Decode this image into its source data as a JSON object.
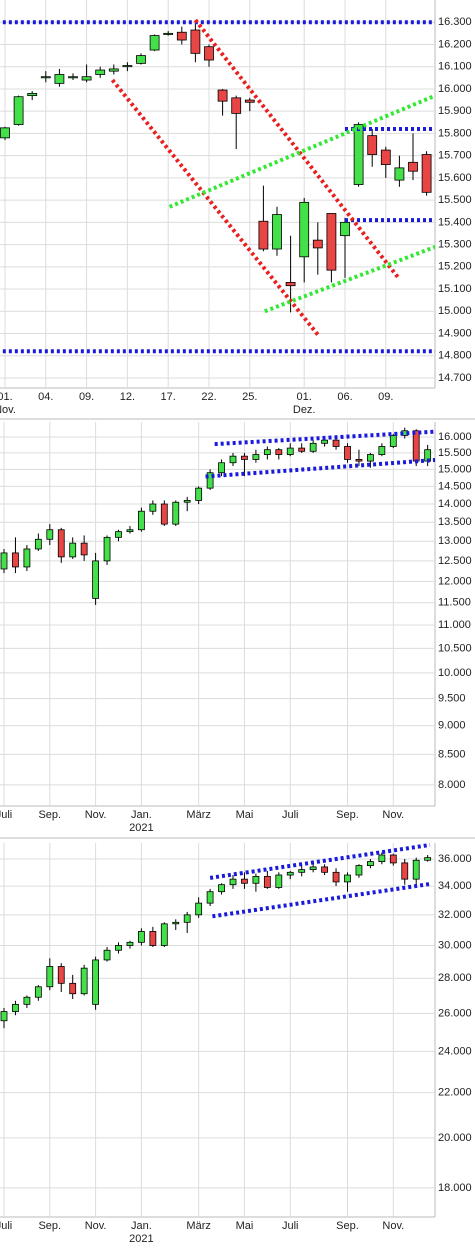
{
  "chart_data": [
    {
      "type": "candlestick",
      "categories": [
        "01.",
        null,
        null,
        "04.",
        null,
        null,
        "09.",
        null,
        null,
        "12.",
        null,
        null,
        "17.",
        null,
        null,
        "22.",
        null,
        null,
        "25.",
        null,
        null,
        null,
        "01.",
        null,
        null,
        "06.",
        null,
        null,
        "09.",
        null,
        null,
        null
      ],
      "sublabels": [
        "Nov.",
        null,
        null,
        null,
        null,
        null,
        null,
        null,
        null,
        null,
        null,
        null,
        null,
        null,
        null,
        null,
        null,
        null,
        null,
        null,
        null,
        null,
        "Dez.",
        null,
        null,
        null,
        null,
        null,
        null,
        null,
        null,
        null
      ],
      "ohlc": [
        [
          15780,
          15830,
          15770,
          15825
        ],
        [
          15840,
          15970,
          15835,
          15965
        ],
        [
          15970,
          15990,
          15950,
          15980
        ],
        [
          16050,
          16080,
          16030,
          16055
        ],
        [
          16025,
          16090,
          16010,
          16065
        ],
        [
          16050,
          16070,
          16040,
          16055
        ],
        [
          16040,
          16110,
          16030,
          16055
        ],
        [
          16065,
          16100,
          16050,
          16085
        ],
        [
          16080,
          16110,
          16065,
          16090
        ],
        [
          16100,
          16120,
          16080,
          16105
        ],
        [
          16115,
          16160,
          16110,
          16150
        ],
        [
          16175,
          16245,
          16170,
          16240
        ],
        [
          16245,
          16260,
          16240,
          16250
        ],
        [
          16255,
          16280,
          16200,
          16220
        ],
        [
          16265,
          16300,
          16120,
          16160
        ],
        [
          16190,
          16200,
          16100,
          16130
        ],
        [
          15995,
          16000,
          15880,
          15945
        ],
        [
          15960,
          15970,
          15730,
          15890
        ],
        [
          15950,
          15960,
          15900,
          15940
        ],
        [
          15405,
          15565,
          15270,
          15280
        ],
        [
          15280,
          15470,
          15250,
          15435
        ],
        [
          15130,
          15340,
          14995,
          15115
        ],
        [
          15245,
          15510,
          15130,
          15490
        ],
        [
          15320,
          15400,
          15165,
          15285
        ],
        [
          15440,
          15440,
          15130,
          15185
        ],
        [
          15340,
          15420,
          15150,
          15400
        ],
        [
          15570,
          15850,
          15560,
          15840
        ],
        [
          15790,
          15820,
          15650,
          15705
        ],
        [
          15725,
          15740,
          15600,
          15660
        ],
        [
          15590,
          15700,
          15560,
          15645
        ],
        [
          15670,
          15800,
          15590,
          15630
        ],
        [
          15705,
          15720,
          15520,
          15535
        ]
      ],
      "ylim": [
        14655,
        16400
      ],
      "log": false,
      "grid": true,
      "yticks": [
        {
          "value": 14700,
          "label": "14.700"
        },
        {
          "value": 14800,
          "label": "14.800"
        },
        {
          "value": 14900,
          "label": "14.900"
        },
        {
          "value": 15000,
          "label": "15.000"
        },
        {
          "value": 15100,
          "label": "15.100"
        },
        {
          "value": 15200,
          "label": "15.200"
        },
        {
          "value": 15300,
          "label": "15.300"
        },
        {
          "value": 15400,
          "label": "15.400"
        },
        {
          "value": 15500,
          "label": "15.500"
        },
        {
          "value": 15600,
          "label": "15.600"
        },
        {
          "value": 15700,
          "label": "15.700"
        },
        {
          "value": 15800,
          "label": "15.800"
        },
        {
          "value": 15900,
          "label": "15.900"
        },
        {
          "value": 16000,
          "label": "16.000"
        },
        {
          "value": 16100,
          "label": "16.100"
        },
        {
          "value": 16200,
          "label": "16.200"
        },
        {
          "value": 16300,
          "label": "16.300"
        }
      ],
      "up_color": "#44e04a",
      "down_color": "#e84545",
      "lines": [
        {
          "color": "#1a1adc",
          "from": [
            -0.6,
            16300
          ],
          "to": [
            31.9,
            16300
          ]
        },
        {
          "color": "#1a1adc",
          "from": [
            -0.6,
            14820
          ],
          "to": [
            31.9,
            14820
          ]
        },
        {
          "color": "#1a1adc",
          "from": [
            25,
            15820
          ],
          "to": [
            31.9,
            15820
          ]
        },
        {
          "color": "#1a1adc",
          "from": [
            25,
            15410
          ],
          "to": [
            31.9,
            15410
          ]
        },
        {
          "color": "#e82020",
          "from": [
            14,
            16310
          ],
          "to": [
            29,
            15145
          ]
        },
        {
          "color": "#e82020",
          "from": [
            7.9,
            16040
          ],
          "to": [
            23,
            14895
          ]
        },
        {
          "color": "#33e833",
          "from": [
            12.1,
            15470
          ],
          "to": [
            33.6,
            16020
          ]
        },
        {
          "color": "#33e833",
          "from": [
            19.1,
            15000
          ],
          "to": [
            33.6,
            15335
          ]
        }
      ]
    },
    {
      "type": "candlestick",
      "categories": [
        "Juli",
        null,
        null,
        null,
        "Sep.",
        null,
        null,
        null,
        "Nov.",
        null,
        null,
        null,
        "Jan.",
        null,
        null,
        null,
        null,
        "März",
        null,
        null,
        null,
        "Mai",
        null,
        null,
        null,
        "Juli",
        null,
        null,
        null,
        null,
        "Sep.",
        null,
        null,
        null,
        "Nov.",
        null,
        null,
        null
      ],
      "sublabels": [
        null,
        null,
        null,
        null,
        null,
        null,
        null,
        null,
        null,
        null,
        null,
        null,
        "2021",
        null,
        null,
        null,
        null,
        null,
        null,
        null,
        null,
        null,
        null,
        null,
        null,
        null,
        null,
        null,
        null,
        null,
        null,
        null,
        null,
        null,
        null,
        null,
        null,
        null
      ],
      "ohlc": [
        [
          12300,
          12800,
          12200,
          12700
        ],
        [
          12700,
          13100,
          12200,
          12350
        ],
        [
          12350,
          12900,
          12250,
          12800
        ],
        [
          12800,
          13200,
          12750,
          13050
        ],
        [
          13050,
          13450,
          12900,
          13300
        ],
        [
          13300,
          13350,
          12450,
          12600
        ],
        [
          12600,
          13100,
          12550,
          12950
        ],
        [
          12950,
          13150,
          12500,
          12650
        ],
        [
          11600,
          12700,
          11450,
          12500
        ],
        [
          12500,
          13150,
          12400,
          13100
        ],
        [
          13100,
          13300,
          13000,
          13250
        ],
        [
          13250,
          13400,
          13200,
          13300
        ],
        [
          13300,
          13900,
          13250,
          13800
        ],
        [
          13800,
          14100,
          13700,
          14000
        ],
        [
          14000,
          14100,
          13400,
          13450
        ],
        [
          13450,
          14100,
          13400,
          14050
        ],
        [
          14050,
          14200,
          13800,
          14100
        ],
        [
          14100,
          14500,
          14000,
          14450
        ],
        [
          14450,
          15000,
          14400,
          14900
        ],
        [
          14900,
          15300,
          14800,
          15200
        ],
        [
          15200,
          15500,
          15100,
          15400
        ],
        [
          15400,
          15500,
          14800,
          15300
        ],
        [
          15300,
          15600,
          15200,
          15450
        ],
        [
          15450,
          15700,
          15300,
          15600
        ],
        [
          15600,
          15650,
          15300,
          15450
        ],
        [
          15450,
          15800,
          15400,
          15650
        ],
        [
          15650,
          15800,
          15500,
          15550
        ],
        [
          15550,
          15900,
          15500,
          15800
        ],
        [
          15800,
          15950,
          15700,
          15900
        ],
        [
          15900,
          16000,
          15600,
          15700
        ],
        [
          15700,
          15800,
          15200,
          15300
        ],
        [
          15300,
          15600,
          15100,
          15250
        ],
        [
          15250,
          15500,
          15050,
          15450
        ],
        [
          15450,
          15800,
          15400,
          15700
        ],
        [
          15700,
          16100,
          15650,
          16050
        ],
        [
          16050,
          16300,
          15950,
          16200
        ],
        [
          16200,
          16250,
          15100,
          15250
        ],
        [
          15250,
          15750,
          15100,
          15600
        ]
      ],
      "ylim": [
        7670,
        16485
      ],
      "log": true,
      "grid": true,
      "yticks": [
        {
          "value": 8000,
          "label": "8.000"
        },
        {
          "value": 8500,
          "label": "8.500"
        },
        {
          "value": 9000,
          "label": "9.000"
        },
        {
          "value": 9500,
          "label": "9.500"
        },
        {
          "value": 10000,
          "label": "10.000"
        },
        {
          "value": 10500,
          "label": "10.500"
        },
        {
          "value": 11000,
          "label": "11.000"
        },
        {
          "value": 11500,
          "label": "11.500"
        },
        {
          "value": 12000,
          "label": "12.000"
        },
        {
          "value": 12500,
          "label": "12.500"
        },
        {
          "value": 13000,
          "label": "13.000"
        },
        {
          "value": 13500,
          "label": "13.500"
        },
        {
          "value": 14000,
          "label": "14.000"
        },
        {
          "value": 14500,
          "label": "14.500"
        },
        {
          "value": 15000,
          "label": "15.000"
        },
        {
          "value": 15500,
          "label": "15.500"
        },
        {
          "value": 16000,
          "label": "16.000"
        }
      ],
      "up_color": "#44e04a",
      "down_color": "#e84545",
      "lines": [
        {
          "color": "#1a1adc",
          "from": [
            18.4,
            15775
          ],
          "to": [
            40.7,
            16234
          ]
        },
        {
          "color": "#1a1adc",
          "from": [
            17.6,
            14787
          ],
          "to": [
            40.7,
            15360
          ]
        }
      ]
    },
    {
      "type": "candlestick",
      "categories": [
        "Juli",
        null,
        null,
        null,
        "Sep.",
        null,
        null,
        null,
        "Nov.",
        null,
        null,
        null,
        "Jan.",
        null,
        null,
        null,
        null,
        "März",
        null,
        null,
        null,
        "Mai",
        null,
        null,
        null,
        "Juli",
        null,
        null,
        null,
        null,
        "Sep.",
        null,
        null,
        null,
        "Nov.",
        null,
        null,
        null
      ],
      "sublabels": [
        null,
        null,
        null,
        null,
        null,
        null,
        null,
        null,
        null,
        null,
        null,
        null,
        "2021",
        null,
        null,
        null,
        null,
        null,
        null,
        null,
        null,
        null,
        null,
        null,
        null,
        null,
        null,
        null,
        null,
        null,
        null,
        null,
        null,
        null,
        null,
        null,
        null,
        null
      ],
      "ohlc": [
        [
          25600,
          26300,
          25200,
          26100
        ],
        [
          26100,
          26700,
          25900,
          26500
        ],
        [
          26500,
          27000,
          26300,
          26900
        ],
        [
          26900,
          27600,
          26700,
          27500
        ],
        [
          27500,
          29200,
          27300,
          28700
        ],
        [
          28700,
          28900,
          27200,
          27700
        ],
        [
          27700,
          28200,
          26800,
          27100
        ],
        [
          27100,
          28800,
          27000,
          28600
        ],
        [
          26500,
          29300,
          26200,
          29100
        ],
        [
          29100,
          29900,
          29000,
          29700
        ],
        [
          29700,
          30200,
          29500,
          30000
        ],
        [
          30000,
          30300,
          29800,
          30200
        ],
        [
          30200,
          31100,
          30000,
          30900
        ],
        [
          30900,
          31200,
          29900,
          30000
        ],
        [
          30000,
          31500,
          29900,
          31400
        ],
        [
          31400,
          31700,
          31000,
          31500
        ],
        [
          31500,
          32200,
          30800,
          32000
        ],
        [
          32000,
          33200,
          31800,
          32800
        ],
        [
          32800,
          33800,
          32600,
          33600
        ],
        [
          33600,
          34200,
          33400,
          34100
        ],
        [
          34100,
          34800,
          33800,
          34500
        ],
        [
          34500,
          35000,
          33800,
          34200
        ],
        [
          34200,
          34900,
          33600,
          34700
        ],
        [
          34700,
          35100,
          33800,
          33900
        ],
        [
          33900,
          35000,
          33800,
          34800
        ],
        [
          34800,
          35100,
          34500,
          35000
        ],
        [
          35000,
          35500,
          34700,
          35200
        ],
        [
          35200,
          35600,
          35000,
          35400
        ],
        [
          35400,
          35600,
          34800,
          35000
        ],
        [
          35000,
          35300,
          34000,
          34300
        ],
        [
          34300,
          35000,
          33600,
          34800
        ],
        [
          34800,
          35600,
          34600,
          35500
        ],
        [
          35500,
          36000,
          35300,
          35800
        ],
        [
          35800,
          36500,
          35600,
          36300
        ],
        [
          36300,
          36400,
          35500,
          35700
        ],
        [
          35700,
          36000,
          34100,
          34500
        ],
        [
          34500,
          36100,
          34000,
          35900
        ],
        [
          35900,
          36300,
          35800,
          36100
        ]
      ],
      "ylim": [
        16930,
        37230
      ],
      "log": true,
      "grid": true,
      "yticks": [
        {
          "value": 18000,
          "label": "18.000"
        },
        {
          "value": 20000,
          "label": "20.000"
        },
        {
          "value": 22000,
          "label": "22.000"
        },
        {
          "value": 24000,
          "label": "24.000"
        },
        {
          "value": 26000,
          "label": "26.000"
        },
        {
          "value": 28000,
          "label": "28.000"
        },
        {
          "value": 30000,
          "label": "30.000"
        },
        {
          "value": 32000,
          "label": "32.000"
        },
        {
          "value": 34000,
          "label": "34.000"
        },
        {
          "value": 36000,
          "label": "36.000"
        }
      ],
      "up_color": "#44e04a",
      "down_color": "#e84545",
      "lines": [
        {
          "color": "#1a1adc",
          "from": [
            18,
            34590
          ],
          "to": [
            37.2,
            37077
          ]
        },
        {
          "color": "#1a1adc",
          "from": [
            18.2,
            31900
          ],
          "to": [
            37.2,
            34150
          ]
        }
      ]
    }
  ]
}
